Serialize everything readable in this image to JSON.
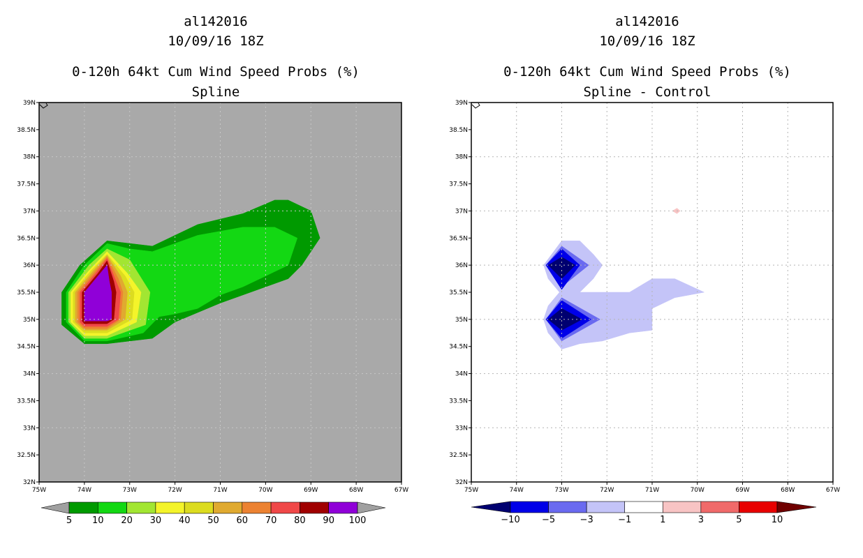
{
  "left": {
    "title_line1": "al142016",
    "title_line2": "10/09/16 18Z",
    "title_line3": "0-120h 64kt Cum Wind Speed Probs (%)",
    "title_line4": "Spline"
  },
  "right": {
    "title_line1": "al142016",
    "title_line2": "10/09/16 18Z",
    "title_line3": "0-120h 64kt Cum Wind Speed Probs (%)",
    "title_line4": "Spline - Control"
  },
  "chart_data": [
    {
      "type": "heatmap",
      "subtype": "filled contour map",
      "title": "0-120h 64kt Cum Wind Speed Probs (%)",
      "subtitle": "Spline",
      "storm": "al142016",
      "time": "10/09/16 18Z",
      "background_color": "#a9a9a9",
      "xlim": [
        -75,
        -67
      ],
      "ylim": [
        32,
        39
      ],
      "grid": true,
      "x_ticks": [
        -75,
        -74,
        -73,
        -72,
        -71,
        -70,
        -69,
        -68,
        -67
      ],
      "y_ticks": [
        32,
        32.5,
        33,
        33.5,
        34,
        34.5,
        35,
        35.5,
        36,
        36.5,
        37,
        37.5,
        38,
        38.5,
        39
      ],
      "x_tick_labels": [
        "75W",
        "74W",
        "73W",
        "72W",
        "71W",
        "70W",
        "69W",
        "68W",
        "67W"
      ],
      "y_tick_labels": [
        "32N",
        "32.5N",
        "33N",
        "33.5N",
        "34N",
        "34.5N",
        "35N",
        "35.5N",
        "36N",
        "36.5N",
        "37N",
        "37.5N",
        "38N",
        "38.5N",
        "39N"
      ],
      "colorbar": {
        "labels": [
          "5",
          "10",
          "20",
          "30",
          "40",
          "50",
          "60",
          "70",
          "80",
          "90",
          "100"
        ],
        "colors": [
          "#a0a0a0",
          "#009a00",
          "#13d813",
          "#a2e632",
          "#f4f42a",
          "#dcdc20",
          "#e0aa30",
          "#ec8232",
          "#f04848",
          "#a00000",
          "#9000d8",
          "#a0a0a0"
        ]
      },
      "contours": [
        {
          "level": 5,
          "color": "#009a00",
          "points": [
            [
              -74.5,
              35.5
            ],
            [
              -74.1,
              36.0
            ],
            [
              -73.5,
              36.45
            ],
            [
              -72.5,
              36.35
            ],
            [
              -71.5,
              36.75
            ],
            [
              -70.5,
              36.95
            ],
            [
              -69.8,
              37.2
            ],
            [
              -69.5,
              37.2
            ],
            [
              -69.0,
              37.0
            ],
            [
              -68.8,
              36.5
            ],
            [
              -69.2,
              36.0
            ],
            [
              -69.5,
              35.75
            ],
            [
              -70.5,
              35.45
            ],
            [
              -71.0,
              35.3
            ],
            [
              -72.0,
              34.95
            ],
            [
              -72.5,
              34.65
            ],
            [
              -73.5,
              34.55
            ],
            [
              -74.0,
              34.55
            ],
            [
              -74.5,
              34.9
            ]
          ]
        },
        {
          "level": 10,
          "color": "#13d813",
          "points": [
            [
              -74.4,
              35.5
            ],
            [
              -74.0,
              36.0
            ],
            [
              -73.5,
              36.4
            ],
            [
              -73.0,
              36.3
            ],
            [
              -72.5,
              36.25
            ],
            [
              -71.5,
              36.55
            ],
            [
              -70.5,
              36.7
            ],
            [
              -69.8,
              36.7
            ],
            [
              -69.3,
              36.5
            ],
            [
              -69.5,
              36.0
            ],
            [
              -70.0,
              35.8
            ],
            [
              -70.5,
              35.6
            ],
            [
              -71.0,
              35.45
            ],
            [
              -71.5,
              35.2
            ],
            [
              -72.0,
              35.1
            ],
            [
              -72.35,
              35.05
            ],
            [
              -72.7,
              34.75
            ],
            [
              -73.5,
              34.6
            ],
            [
              -74.0,
              34.6
            ],
            [
              -74.4,
              34.95
            ]
          ]
        },
        {
          "level": 20,
          "color": "#a2e632",
          "points": [
            [
              -74.35,
              35.5
            ],
            [
              -73.9,
              36.0
            ],
            [
              -73.5,
              36.3
            ],
            [
              -73.0,
              36.1
            ],
            [
              -72.55,
              35.5
            ],
            [
              -72.65,
              34.9
            ],
            [
              -73.5,
              34.65
            ],
            [
              -74.0,
              34.65
            ],
            [
              -74.35,
              34.95
            ]
          ]
        },
        {
          "level": 30,
          "color": "#f4f42a",
          "points": [
            [
              -74.3,
              35.5
            ],
            [
              -73.9,
              35.9
            ],
            [
              -73.5,
              36.25
            ],
            [
              -73.05,
              35.85
            ],
            [
              -72.75,
              35.5
            ],
            [
              -72.85,
              34.95
            ],
            [
              -73.5,
              34.7
            ],
            [
              -74.0,
              34.7
            ],
            [
              -74.3,
              34.95
            ]
          ]
        },
        {
          "level": 40,
          "color": "#dcdc20",
          "points": [
            [
              -74.25,
              35.5
            ],
            [
              -73.85,
              35.9
            ],
            [
              -73.5,
              36.2
            ],
            [
              -73.1,
              35.8
            ],
            [
              -72.9,
              35.5
            ],
            [
              -72.95,
              35.0
            ],
            [
              -73.5,
              34.75
            ],
            [
              -74.0,
              34.75
            ],
            [
              -74.25,
              34.95
            ]
          ]
        },
        {
          "level": 50,
          "color": "#e0aa30",
          "points": [
            [
              -74.2,
              35.5
            ],
            [
              -73.8,
              35.9
            ],
            [
              -73.5,
              36.18
            ],
            [
              -73.2,
              35.8
            ],
            [
              -73.05,
              35.5
            ],
            [
              -73.1,
              35.0
            ],
            [
              -73.5,
              34.8
            ],
            [
              -74.0,
              34.8
            ],
            [
              -74.2,
              34.95
            ]
          ]
        },
        {
          "level": 60,
          "color": "#ec8232",
          "points": [
            [
              -74.15,
              35.5
            ],
            [
              -73.8,
              35.85
            ],
            [
              -73.5,
              36.15
            ],
            [
              -73.25,
              35.75
            ],
            [
              -73.15,
              35.5
            ],
            [
              -73.2,
              35.0
            ],
            [
              -73.5,
              34.83
            ],
            [
              -74.0,
              34.83
            ],
            [
              -74.15,
              34.95
            ]
          ]
        },
        {
          "level": 70,
          "color": "#f04848",
          "points": [
            [
              -74.1,
              35.5
            ],
            [
              -73.75,
              35.85
            ],
            [
              -73.5,
              36.12
            ],
            [
              -73.3,
              35.7
            ],
            [
              -73.2,
              35.5
            ],
            [
              -73.25,
              35.0
            ],
            [
              -73.5,
              34.87
            ],
            [
              -74.0,
              34.87
            ],
            [
              -74.1,
              34.95
            ]
          ]
        },
        {
          "level": 80,
          "color": "#a00000",
          "points": [
            [
              -74.05,
              35.5
            ],
            [
              -73.7,
              35.85
            ],
            [
              -73.5,
              36.08
            ],
            [
              -73.35,
              35.7
            ],
            [
              -73.3,
              35.5
            ],
            [
              -73.35,
              35.0
            ],
            [
              -73.5,
              34.92
            ],
            [
              -74.0,
              34.92
            ],
            [
              -74.05,
              34.97
            ]
          ]
        },
        {
          "level": 90,
          "color": "#9000d8",
          "points": [
            [
              -74.0,
              35.5
            ],
            [
              -73.7,
              35.8
            ],
            [
              -73.5,
              36.0
            ],
            [
              -73.45,
              35.7
            ],
            [
              -73.4,
              35.5
            ],
            [
              -73.4,
              35.0
            ],
            [
              -73.5,
              34.97
            ],
            [
              -74.0,
              34.97
            ]
          ]
        }
      ]
    },
    {
      "type": "heatmap",
      "subtype": "filled contour map",
      "title": "0-120h 64kt Cum Wind Speed Probs (%)",
      "subtitle": "Spline - Control",
      "storm": "al142016",
      "time": "10/09/16 18Z",
      "background_color": "#ffffff",
      "xlim": [
        -75,
        -67
      ],
      "ylim": [
        32,
        39
      ],
      "grid": true,
      "x_ticks": [
        -75,
        -74,
        -73,
        -72,
        -71,
        -70,
        -69,
        -68,
        -67
      ],
      "y_ticks": [
        32,
        32.5,
        33,
        33.5,
        34,
        34.5,
        35,
        35.5,
        36,
        36.5,
        37,
        37.5,
        38,
        38.5,
        39
      ],
      "x_tick_labels": [
        "75W",
        "74W",
        "73W",
        "72W",
        "71W",
        "70W",
        "69W",
        "68W",
        "67W"
      ],
      "y_tick_labels": [
        "32N",
        "32.5N",
        "33N",
        "33.5N",
        "34N",
        "34.5N",
        "35N",
        "35.5N",
        "36N",
        "36.5N",
        "37N",
        "37.5N",
        "38N",
        "38.5N",
        "39N"
      ],
      "colorbar": {
        "labels": [
          "-10",
          "-5",
          "-3",
          "-1",
          "1",
          "3",
          "5",
          "10"
        ],
        "colors": [
          "#000070",
          "#0000e8",
          "#6a6af0",
          "#c4c4f8",
          "#ffffff",
          "#f8c4c4",
          "#f06a6a",
          "#e80000",
          "#700000"
        ]
      },
      "contours": [
        {
          "level": -1,
          "color": "#c4c4f8",
          "points": [
            [
              -73.4,
              36.0
            ],
            [
              -73.0,
              36.45
            ],
            [
              -72.6,
              36.45
            ],
            [
              -72.3,
              36.2
            ],
            [
              -72.1,
              36.0
            ],
            [
              -72.3,
              35.75
            ],
            [
              -72.6,
              35.5
            ],
            [
              -71.5,
              35.5
            ],
            [
              -71.0,
              35.75
            ],
            [
              -70.5,
              35.75
            ],
            [
              -69.85,
              35.5
            ],
            [
              -70.5,
              35.4
            ],
            [
              -71.0,
              35.2
            ],
            [
              -71.0,
              34.8
            ],
            [
              -71.5,
              34.75
            ],
            [
              -72.1,
              34.6
            ],
            [
              -72.6,
              34.55
            ],
            [
              -73.0,
              34.45
            ],
            [
              -73.3,
              34.75
            ],
            [
              -73.4,
              35.0
            ],
            [
              -73.3,
              35.25
            ],
            [
              -73.05,
              35.5
            ],
            [
              -73.3,
              35.75
            ]
          ]
        },
        {
          "level": -1,
          "color": "#c4c4f8",
          "points": [
            [
              -73.4,
              35.0
            ],
            [
              -73.0,
              35.45
            ],
            [
              -72.6,
              35.3
            ],
            [
              -72.1,
              35.0
            ],
            [
              -72.5,
              34.75
            ],
            [
              -73.0,
              34.5
            ],
            [
              -73.3,
              34.75
            ]
          ]
        },
        {
          "level": -3,
          "color": "#6a6af0",
          "points": [
            [
              -73.35,
              36.0
            ],
            [
              -73.0,
              36.35
            ],
            [
              -72.4,
              36.0
            ],
            [
              -73.0,
              35.6
            ]
          ]
        },
        {
          "level": -3,
          "color": "#6a6af0",
          "points": [
            [
              -73.35,
              35.0
            ],
            [
              -73.0,
              35.4
            ],
            [
              -72.15,
              35.0
            ],
            [
              -73.0,
              34.6
            ]
          ]
        },
        {
          "level": -5,
          "color": "#0000e8",
          "points": [
            [
              -73.35,
              36.0
            ],
            [
              -73.0,
              36.3
            ],
            [
              -72.6,
              36.0
            ],
            [
              -73.0,
              35.55
            ]
          ]
        },
        {
          "level": -5,
          "color": "#0000e8",
          "points": [
            [
              -73.35,
              35.0
            ],
            [
              -73.0,
              35.35
            ],
            [
              -72.35,
              35.0
            ],
            [
              -73.0,
              34.65
            ]
          ]
        },
        {
          "level": -10,
          "color": "#000070",
          "points": [
            [
              -73.3,
              36.0
            ],
            [
              -73.0,
              36.15
            ],
            [
              -72.7,
              36.0
            ],
            [
              -73.0,
              35.75
            ]
          ]
        },
        {
          "level": -10,
          "color": "#000070",
          "points": [
            [
              -73.3,
              35.0
            ],
            [
              -73.0,
              35.2
            ],
            [
              -72.55,
              35.0
            ],
            [
              -73.0,
              34.8
            ]
          ]
        },
        {
          "level": 1,
          "color": "#f8c4c4",
          "points": [
            [
              -70.55,
              37.0
            ],
            [
              -70.45,
              37.05
            ],
            [
              -70.38,
              37.0
            ],
            [
              -70.45,
              36.95
            ]
          ]
        }
      ]
    }
  ]
}
